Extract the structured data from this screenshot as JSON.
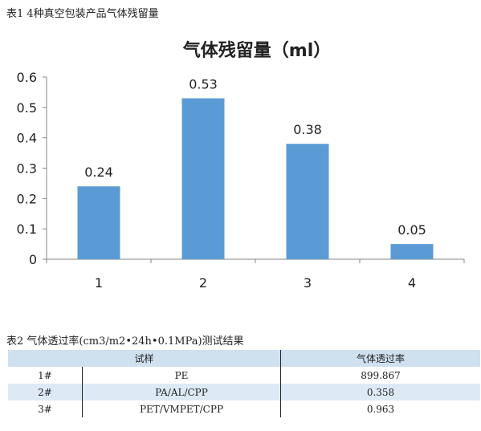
{
  "caption1": "表1 4种真空包装产品气体残留量",
  "caption2": "表2 气体透过率(cm3/m2•24h•0.1MPa)测试结果",
  "chart_data": {
    "type": "bar",
    "title": "气体残留量（ml）",
    "categories": [
      "1",
      "2",
      "3",
      "4"
    ],
    "values": [
      0.24,
      0.53,
      0.38,
      0.05
    ],
    "data_labels": [
      "0.24",
      "0.53",
      "0.38",
      "0.05"
    ],
    "yticks": [
      "0",
      "0.1",
      "0.2",
      "0.3",
      "0.4",
      "0.5",
      "0.6"
    ],
    "ylim": [
      0,
      0.6
    ],
    "grid": false,
    "legend": "none",
    "bar_color": "#5b9bd5"
  },
  "table": {
    "headers": [
      "试样",
      "气体透过率"
    ],
    "rows": [
      [
        "1#",
        "PE",
        "899.867"
      ],
      [
        "2#",
        "PA/AL/CPP",
        "0.358"
      ],
      [
        "3#",
        "PET/VMPET/CPP",
        "0.963"
      ]
    ]
  }
}
